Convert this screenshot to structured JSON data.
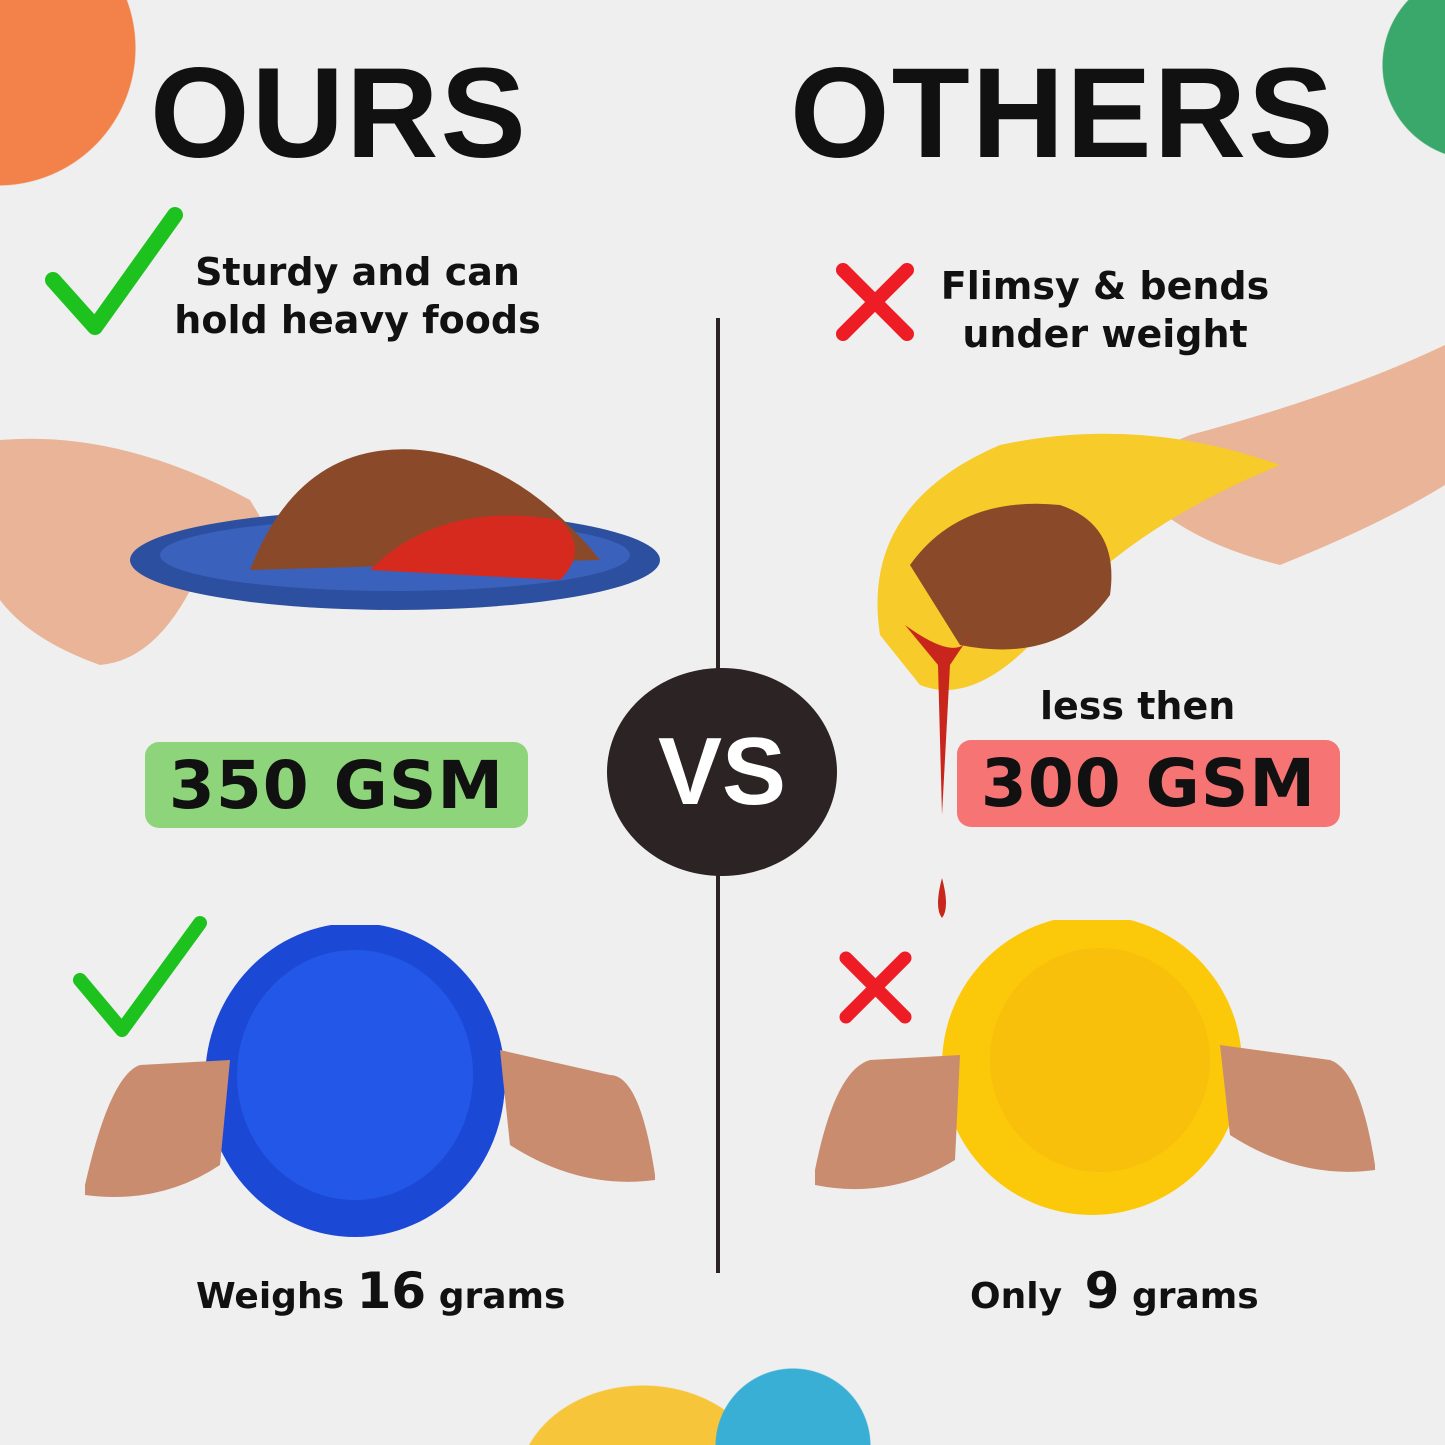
{
  "colors": {
    "background": "#efefef",
    "orange": "#f2824a",
    "green_circle": "#3aa86a",
    "yellow": "#f6c53a",
    "blue": "#3aafd6",
    "check": "#1ec21e",
    "cross": "#ee1c24",
    "badge_ours": "#8ed47a",
    "badge_others": "#f77474",
    "vs_circle": "#2b2324",
    "divider": "#2b2324"
  },
  "ours": {
    "title": "OURS",
    "claim_line1": "Sturdy and can",
    "claim_line2": "hold heavy foods",
    "gsm": "350 GSM",
    "weight_prefix": "Weighs",
    "weight_value": "16",
    "weight_unit": "grams",
    "icon": "check-icon"
  },
  "vs": "VS",
  "others": {
    "title": "OTHERS",
    "claim_line1": "Flimsy & bends",
    "claim_line2": "under weight",
    "gsm_prefix": "less then",
    "gsm": "300 GSM",
    "weight_prefix": "Only",
    "weight_value": "9",
    "weight_unit": "grams",
    "icon": "cross-icon"
  }
}
